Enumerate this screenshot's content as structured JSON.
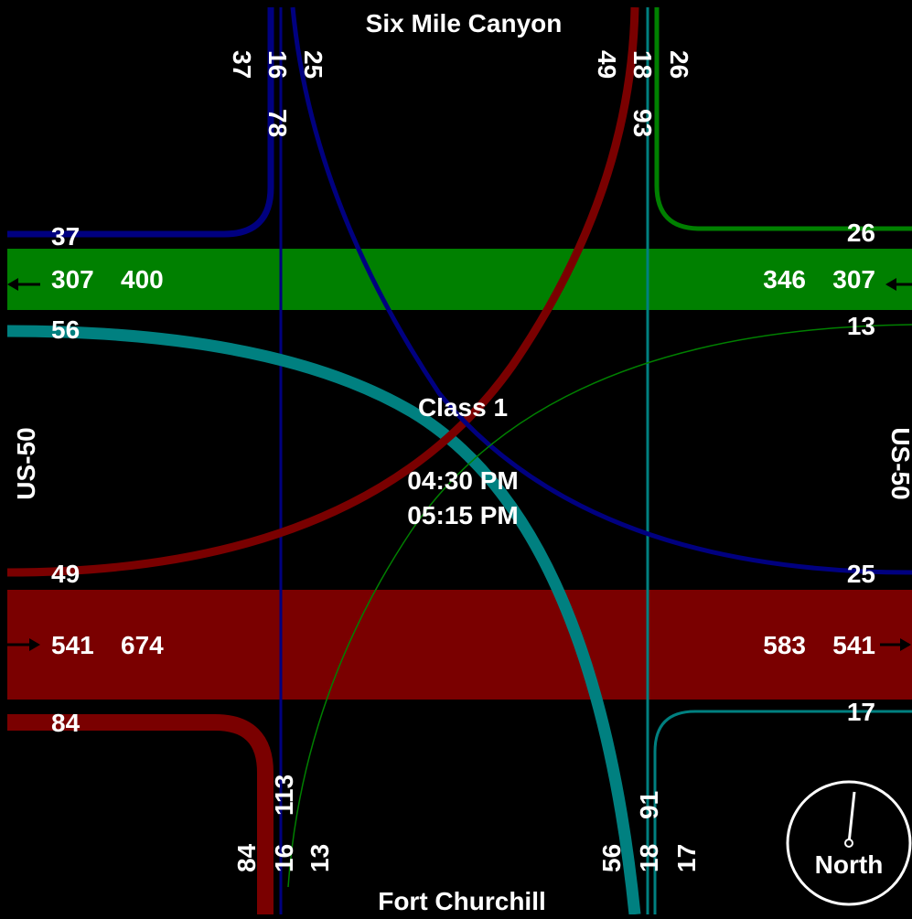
{
  "streets": {
    "north": "Six Mile Canyon",
    "south": "Fort Churchill",
    "west": "US-50",
    "east": "US-50"
  },
  "center": {
    "vehicle_class": "Class 1",
    "start_time": "04:30 PM",
    "end_time": "05:15 PM"
  },
  "compass": {
    "label": "North"
  },
  "west_approach": {
    "right_turn_out": "37",
    "westbound_exit": "307",
    "westbound_total": "400",
    "left_turn_out": "56",
    "right_turn_in": "49",
    "eastbound_entry": "541",
    "eastbound_total": "674",
    "left_turn_in": "84"
  },
  "east_approach": {
    "right_turn_in": "26",
    "westbound_total": "346",
    "westbound_entry": "307",
    "left_turn_in": "13",
    "left_turn_out": "25",
    "eastbound_total": "583",
    "eastbound_exit": "541",
    "right_turn_out": "17"
  },
  "north_approach": {
    "left_out": "37",
    "through_out": "16",
    "total_out": "78",
    "right_out": "25",
    "left_in": "49",
    "through_in": "18",
    "total_in": "93",
    "right_in": "26"
  },
  "south_approach": {
    "left_in": "84",
    "through_in": "16",
    "total_in": "113",
    "right_in": "13",
    "left_out": "56",
    "through_out": "18",
    "total_out": "91",
    "right_out": "17"
  },
  "colors": {
    "background": "#000000",
    "eastbound": "#7a0000",
    "westbound": "#008000",
    "northbound": "#008080",
    "southbound": "#000080",
    "text": "#ffffff"
  }
}
